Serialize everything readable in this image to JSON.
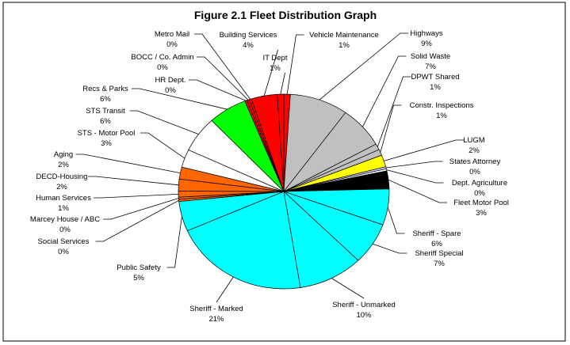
{
  "chart_data": {
    "type": "pie",
    "title": "Figure 2.1 Fleet Distribution Graph",
    "start": "top, clockwise",
    "slices": [
      {
        "label": "Vehicle Maintenance",
        "value": 1,
        "pct": "1%",
        "color": "#FF0000"
      },
      {
        "label": "Highways",
        "value": 9,
        "pct": "9%",
        "color": "#C0C0C0"
      },
      {
        "label": "Solid Waste",
        "value": 7,
        "pct": "7%",
        "color": "#C0C0C0"
      },
      {
        "label": "DPWT Shared",
        "value": 1,
        "pct": "1%",
        "color": "#C0C0C0"
      },
      {
        "label": "Constr. Inspections",
        "value": 1,
        "pct": "1%",
        "color": "#C0C0C0"
      },
      {
        "label": "LUGM",
        "value": 2,
        "pct": "2%",
        "color": "#FFFF00"
      },
      {
        "label": "States Attorney",
        "value": 0,
        "pct": "0%",
        "color": "#CCCCFF"
      },
      {
        "label": "Dept. Agriculture",
        "value": 0,
        "pct": "0%",
        "color": "#FFFFFF"
      },
      {
        "label": "Fleet Motor Pool",
        "value": 3,
        "pct": "3%",
        "color": "#000000"
      },
      {
        "label": "Sheriff - Spare",
        "value": 6,
        "pct": "6%",
        "color": "#00FFFF"
      },
      {
        "label": "Sheriff Special",
        "value": 7,
        "pct": "7%",
        "color": "#00FFFF"
      },
      {
        "label": "Sheriff - Unmarked",
        "value": 10,
        "pct": "10%",
        "color": "#00FFFF"
      },
      {
        "label": "Sheriff - Marked",
        "value": 21,
        "pct": "21%",
        "color": "#00FFFF"
      },
      {
        "label": "Public Safety",
        "value": 5,
        "pct": "5%",
        "color": "#00FFFF"
      },
      {
        "label": "Social Services",
        "value": 0,
        "pct": "0%",
        "color": "#FF6600"
      },
      {
        "label": "Marcey House / ABC",
        "value": 0,
        "pct": "0%",
        "color": "#FF6600"
      },
      {
        "label": "Human Services",
        "value": 1,
        "pct": "1%",
        "color": "#FF6600"
      },
      {
        "label": "DECD-Housing",
        "value": 2,
        "pct": "2%",
        "color": "#FF6600"
      },
      {
        "label": "Aging",
        "value": 2,
        "pct": "2%",
        "color": "#FF6600"
      },
      {
        "label": "STS - Motor Pool",
        "value": 3,
        "pct": "3%",
        "color": "#FFFFFF"
      },
      {
        "label": "STS Transit",
        "value": 6,
        "pct": "6%",
        "color": "#FFFFFF"
      },
      {
        "label": "Recs & Parks",
        "value": 6,
        "pct": "6%",
        "color": "#00FF00"
      },
      {
        "label": "HR Dept.",
        "value": 0,
        "pct": "0%",
        "color": "#FF0000"
      },
      {
        "label": "BOCC / Co. Admin",
        "value": 0,
        "pct": "0%",
        "color": "#FF0000"
      },
      {
        "label": "Metro Mail",
        "value": 0,
        "pct": "0%",
        "color": "#FF0000"
      },
      {
        "label": "Building Services",
        "value": 4,
        "pct": "4%",
        "color": "#FF0000"
      },
      {
        "label": "IT Dept",
        "value": 1,
        "pct": "1%",
        "color": "#FF0000"
      }
    ]
  }
}
